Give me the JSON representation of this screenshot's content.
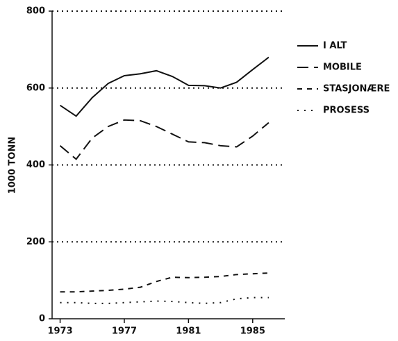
{
  "chart_data": {
    "type": "line",
    "y_label": "1000 TONN",
    "x": [
      1973,
      1974,
      1975,
      1976,
      1977,
      1978,
      1979,
      1980,
      1981,
      1982,
      1983,
      1984,
      1985,
      1986
    ],
    "xlim": [
      1972.5,
      1987
    ],
    "xticks": [
      1973,
      1977,
      1981,
      1985
    ],
    "ylim": [
      0,
      800
    ],
    "yticks": [
      0,
      200,
      400,
      600,
      800
    ],
    "grid": true,
    "legend": "right",
    "series": [
      {
        "name": "I ALT",
        "color": "#111111",
        "dash": "solid",
        "values": [
          555,
          527,
          575,
          612,
          632,
          637,
          645,
          630,
          607,
          606,
          600,
          615,
          648,
          680
        ]
      },
      {
        "name": "MOBILE",
        "color": "#111111",
        "dash": "long",
        "values": [
          450,
          415,
          470,
          500,
          517,
          515,
          500,
          480,
          460,
          458,
          450,
          447,
          475,
          510
        ]
      },
      {
        "name": "STASJONÆRE",
        "color": "#111111",
        "dash": "short",
        "values": [
          70,
          70,
          72,
          74,
          77,
          82,
          97,
          108,
          107,
          108,
          110,
          115,
          117,
          119
        ]
      },
      {
        "name": "PROSESS",
        "color": "#111111",
        "dash": "dot",
        "values": [
          42,
          42,
          40,
          40,
          42,
          44,
          46,
          45,
          42,
          40,
          42,
          52,
          55,
          55
        ]
      }
    ]
  }
}
